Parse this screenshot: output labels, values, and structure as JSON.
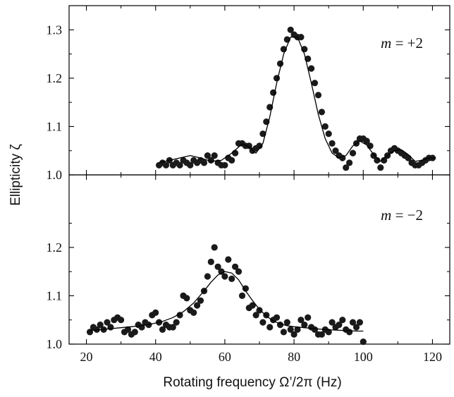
{
  "figure": {
    "y_axis_title": "Ellipticity ζ",
    "x_axis_title": "Rotating frequency Ω’/2π (Hz)"
  },
  "chart_data": [
    {
      "type": "scatter",
      "panel": "top",
      "annotation_var": "m",
      "annotation_rest": " = +2",
      "xlim": [
        15,
        125
      ],
      "ylim": [
        1.0,
        1.35
      ],
      "x_ticks": [
        20,
        40,
        60,
        80,
        100,
        120
      ],
      "x_tick_labels": [
        "",
        "",
        "",
        "",
        "",
        ""
      ],
      "y_ticks": [
        1.0,
        1.1,
        1.2,
        1.3
      ],
      "y_tick_labels": [
        "1.0",
        "1.1",
        "1.2",
        "1.3"
      ],
      "grid": false,
      "series": [
        {
          "kind": "points",
          "color": "#1a1a1a",
          "x": [
            41,
            42,
            43,
            44,
            45,
            46,
            47,
            48,
            49,
            50,
            51,
            52,
            53,
            54,
            55,
            56,
            57,
            58,
            59,
            60,
            61,
            62,
            63,
            64,
            65,
            66,
            67,
            68,
            69,
            70,
            71,
            72,
            73,
            74,
            75,
            76,
            77,
            78,
            79,
            80,
            81,
            82,
            83,
            84,
            85,
            86,
            87,
            88,
            89,
            90,
            91,
            92,
            93,
            94,
            95,
            96,
            97,
            98,
            99,
            100,
            101,
            102,
            103,
            104,
            105,
            106,
            107,
            108,
            109,
            110,
            111,
            112,
            113,
            114,
            115,
            116,
            117,
            118,
            119,
            120
          ],
          "y": [
            1.02,
            1.025,
            1.02,
            1.03,
            1.02,
            1.025,
            1.02,
            1.03,
            1.025,
            1.02,
            1.03,
            1.025,
            1.03,
            1.025,
            1.04,
            1.03,
            1.04,
            1.025,
            1.02,
            1.02,
            1.035,
            1.03,
            1.045,
            1.065,
            1.065,
            1.06,
            1.06,
            1.05,
            1.055,
            1.06,
            1.085,
            1.11,
            1.14,
            1.17,
            1.2,
            1.23,
            1.26,
            1.28,
            1.3,
            1.29,
            1.285,
            1.285,
            1.26,
            1.24,
            1.22,
            1.19,
            1.165,
            1.13,
            1.1,
            1.085,
            1.065,
            1.05,
            1.04,
            1.035,
            1.015,
            1.025,
            1.045,
            1.065,
            1.075,
            1.075,
            1.07,
            1.06,
            1.04,
            1.03,
            1.015,
            1.03,
            1.04,
            1.05,
            1.055,
            1.05,
            1.045,
            1.04,
            1.035,
            1.025,
            1.02,
            1.02,
            1.025,
            1.03,
            1.035,
            1.035
          ]
        },
        {
          "kind": "fit",
          "color": "#000000",
          "x": [
            41,
            44,
            47,
            50,
            53,
            56,
            59,
            62,
            65,
            67,
            69,
            71,
            73,
            75,
            77,
            79,
            81,
            83,
            85,
            87,
            89,
            91,
            93,
            95,
            97,
            99,
            101,
            103,
            105,
            107,
            109,
            111,
            113,
            115,
            117,
            119,
            121
          ],
          "y": [
            1.025,
            1.03,
            1.035,
            1.04,
            1.035,
            1.028,
            1.03,
            1.045,
            1.064,
            1.058,
            1.045,
            1.065,
            1.12,
            1.19,
            1.25,
            1.285,
            1.285,
            1.25,
            1.19,
            1.125,
            1.075,
            1.045,
            1.035,
            1.04,
            1.06,
            1.07,
            1.062,
            1.042,
            1.028,
            1.04,
            1.05,
            1.052,
            1.042,
            1.028,
            1.03,
            1.035,
            1.035
          ]
        }
      ]
    },
    {
      "type": "scatter",
      "panel": "bottom",
      "annotation_var": "m",
      "annotation_rest": " = −2",
      "xlim": [
        15,
        125
      ],
      "ylim": [
        1.0,
        1.35
      ],
      "x_ticks": [
        20,
        40,
        60,
        80,
        100,
        120
      ],
      "x_tick_labels": [
        "20",
        "40",
        "60",
        "80",
        "100",
        "120"
      ],
      "y_ticks": [
        1.0,
        1.1,
        1.2
      ],
      "y_tick_labels": [
        "1.0",
        "1.1",
        "1.2"
      ],
      "grid": false,
      "series": [
        {
          "kind": "points",
          "color": "#1a1a1a",
          "x": [
            21,
            22,
            23,
            24,
            25,
            26,
            27,
            28,
            29,
            30,
            31,
            32,
            33,
            34,
            35,
            36,
            37,
            38,
            39,
            40,
            41,
            42,
            43,
            44,
            45,
            46,
            47,
            48,
            49,
            50,
            51,
            52,
            53,
            54,
            55,
            56,
            57,
            58,
            59,
            60,
            61,
            62,
            63,
            64,
            65,
            66,
            67,
            68,
            69,
            70,
            71,
            72,
            73,
            74,
            75,
            76,
            77,
            78,
            79,
            80,
            81,
            82,
            83,
            84,
            85,
            86,
            87,
            88,
            89,
            90,
            91,
            92,
            93,
            94,
            95,
            96,
            97,
            98,
            99,
            100
          ],
          "y": [
            1.025,
            1.035,
            1.03,
            1.04,
            1.03,
            1.045,
            1.035,
            1.05,
            1.055,
            1.05,
            1.025,
            1.03,
            1.02,
            1.025,
            1.04,
            1.035,
            1.045,
            1.04,
            1.06,
            1.065,
            1.045,
            1.03,
            1.04,
            1.035,
            1.035,
            1.045,
            1.06,
            1.1,
            1.095,
            1.07,
            1.065,
            1.08,
            1.09,
            1.11,
            1.14,
            1.17,
            1.2,
            1.16,
            1.15,
            1.14,
            1.175,
            1.135,
            1.16,
            1.15,
            1.1,
            1.115,
            1.075,
            1.08,
            1.06,
            1.07,
            1.045,
            1.06,
            1.035,
            1.05,
            1.055,
            1.04,
            1.025,
            1.045,
            1.03,
            1.02,
            1.03,
            1.05,
            1.04,
            1.055,
            1.035,
            1.03,
            1.02,
            1.02,
            1.03,
            1.025,
            1.045,
            1.035,
            1.04,
            1.05,
            1.03,
            1.025,
            1.045,
            1.035,
            1.045,
            1.005
          ]
        },
        {
          "kind": "fit",
          "color": "#000000",
          "x": [
            21,
            24,
            27,
            30,
            33,
            36,
            39,
            42,
            45,
            48,
            51,
            54,
            56,
            58,
            60,
            62,
            64,
            66,
            68,
            70,
            72,
            74,
            76,
            78,
            80,
            83,
            86,
            89,
            92,
            95,
            98,
            100
          ],
          "y": [
            1.028,
            1.03,
            1.032,
            1.034,
            1.036,
            1.038,
            1.042,
            1.047,
            1.055,
            1.067,
            1.085,
            1.11,
            1.128,
            1.143,
            1.15,
            1.147,
            1.133,
            1.11,
            1.09,
            1.072,
            1.058,
            1.048,
            1.042,
            1.038,
            1.036,
            1.034,
            1.032,
            1.03,
            1.029,
            1.028,
            1.027,
            1.027
          ]
        }
      ]
    }
  ]
}
